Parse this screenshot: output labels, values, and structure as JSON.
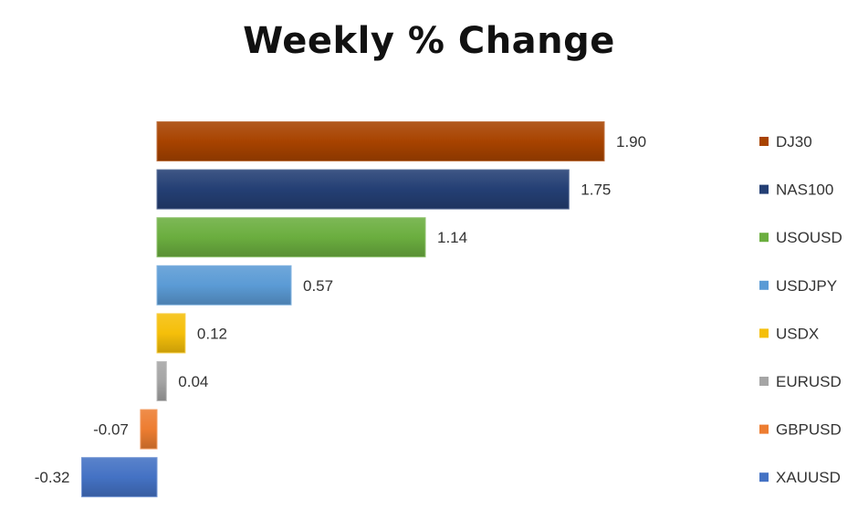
{
  "chart_data": {
    "type": "bar",
    "orientation": "horizontal",
    "title": "Weekly % Change",
    "xlabel": "",
    "ylabel": "",
    "categories": [
      "DJ30",
      "NAS100",
      "USOUSD",
      "USDJPY",
      "USDX",
      "EURUSD",
      "GBPUSD",
      "XAUUSD"
    ],
    "values": [
      1.9,
      1.75,
      1.14,
      0.57,
      0.12,
      0.04,
      -0.07,
      -0.32
    ],
    "value_labels": [
      "1.90",
      "1.75",
      "1.14",
      "0.57",
      "0.12",
      "0.04",
      "-0.07",
      "-0.32"
    ],
    "colors": [
      "#A84300",
      "#243F74",
      "#6BAE3F",
      "#5B9BD5",
      "#F5BF0A",
      "#A5A5A5",
      "#ED7D31",
      "#4472C4"
    ],
    "xlim": [
      -0.32,
      1.9
    ],
    "grid": false,
    "legend": "right",
    "data_labels": true
  }
}
